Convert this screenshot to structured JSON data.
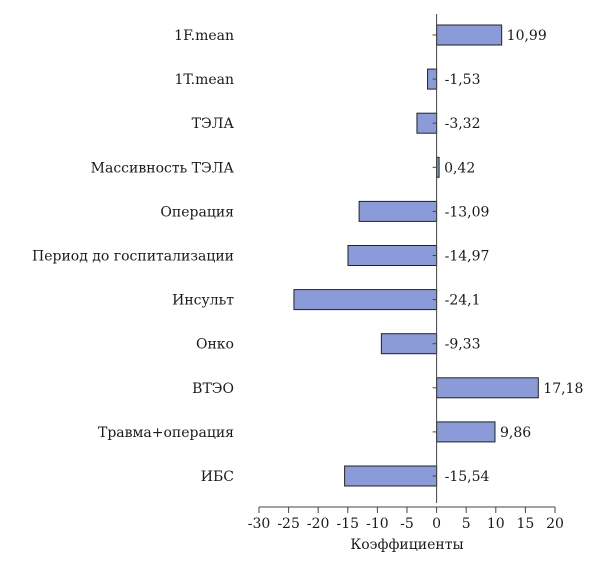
{
  "chart_data": {
    "type": "bar",
    "orientation": "horizontal",
    "categories": [
      "1F.mean",
      "1T.mean",
      "ТЭЛА",
      "Массивность ТЭЛА",
      "Операция",
      "Период до госпитализации",
      "Инсульт",
      "Онко",
      "ВТЭО",
      "Травма+операция",
      "ИБС"
    ],
    "values": [
      10.99,
      -1.53,
      -3.32,
      0.42,
      -13.09,
      -14.97,
      -24.1,
      -9.33,
      17.18,
      9.86,
      -15.54
    ],
    "value_labels": [
      "10,99",
      "-1,53",
      "-3,32",
      "0,42",
      "-13,09",
      "-14,97",
      "-24,1",
      "-9,33",
      "17,18",
      "9,86",
      "-15,54"
    ],
    "xlabel": "Коэффициенты",
    "ylabel": "",
    "title": "",
    "xlim": [
      -30,
      20
    ],
    "xticks": [
      -30,
      -25,
      -20,
      -15,
      -10,
      -5,
      0,
      5,
      10,
      15,
      20
    ],
    "grid": false,
    "legend": "none",
    "bar_color": "#8b9bd8"
  }
}
